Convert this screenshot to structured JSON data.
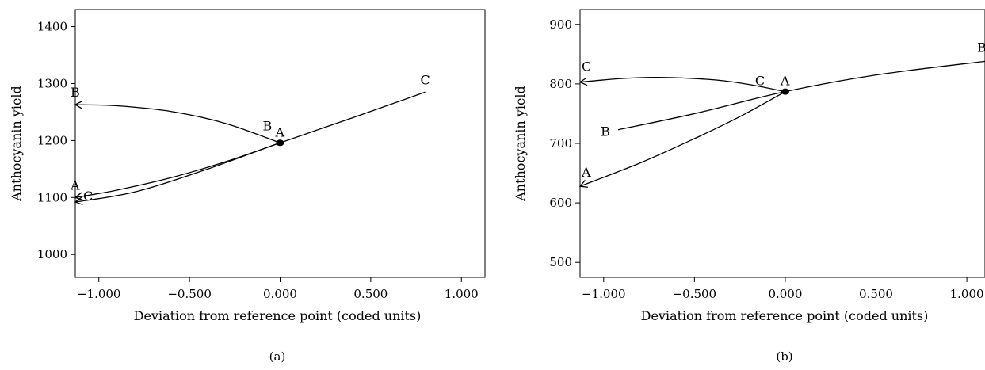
{
  "chart_data": [
    {
      "type": "line",
      "panel_label": "(a)",
      "xlabel": "Deviation from reference point (coded units)",
      "ylabel": "Anthocyanin yield",
      "xlim": [
        -1.13,
        1.13
      ],
      "ylim": [
        960,
        1430
      ],
      "x_ticks": [
        -1.0,
        -0.5,
        0.0,
        0.5,
        1.0
      ],
      "x_tick_labels": [
        "−1.000",
        "−0.500",
        "0.000",
        "0.500",
        "1.000"
      ],
      "y_ticks": [
        1000,
        1100,
        1200,
        1300,
        1400
      ],
      "y_tick_labels": [
        "1000",
        "1100",
        "1200",
        "1300",
        "1400"
      ],
      "reference_point": {
        "label": "A",
        "x": 0.0,
        "y": 1196
      },
      "grid": false,
      "series": [
        {
          "name": "A",
          "x": [
            -1.13,
            -0.9,
            -0.6,
            -0.3,
            0.0
          ],
          "y": [
            1100,
            1113,
            1135,
            1163,
            1196
          ],
          "start_label": "A",
          "end_label": "",
          "arrow_at_start": true
        },
        {
          "name": "B",
          "x": [
            -1.13,
            -0.9,
            -0.6,
            -0.3,
            0.0
          ],
          "y": [
            1263,
            1261,
            1251,
            1230,
            1196
          ],
          "start_label": "B",
          "end_label": "B",
          "arrow_at_start": true
        },
        {
          "name": "C",
          "x": [
            -1.13,
            -0.8,
            -0.4,
            0.0,
            0.4,
            0.8
          ],
          "y": [
            1092,
            1110,
            1150,
            1196,
            1240,
            1285
          ],
          "start_label": "C",
          "end_label": "C",
          "arrow_at_start": true
        }
      ]
    },
    {
      "type": "line",
      "panel_label": "(b)",
      "xlabel": "Deviation from reference point (coded units)",
      "ylabel": "Anthocyanin yield",
      "xlim": [
        -1.13,
        1.1
      ],
      "ylim": [
        475,
        925
      ],
      "x_ticks": [
        -1.0,
        -0.5,
        0.0,
        0.5,
        1.0
      ],
      "x_tick_labels": [
        "−1.000",
        "−0.500",
        "0.000",
        "0.500",
        "1.000"
      ],
      "y_ticks": [
        500,
        600,
        700,
        800,
        900
      ],
      "y_tick_labels": [
        "500",
        "600",
        "700",
        "800",
        "900"
      ],
      "reference_point": {
        "label": "A",
        "x": 0.0,
        "y": 787
      },
      "grid": false,
      "series": [
        {
          "name": "A",
          "x": [
            -1.13,
            -0.8,
            -0.5,
            -0.25,
            0.0
          ],
          "y": [
            628,
            667,
            708,
            745,
            787
          ],
          "start_label": "A",
          "end_label": "",
          "arrow_at_start": true
        },
        {
          "name": "B",
          "x": [
            -0.92,
            -0.5,
            0.0,
            0.5,
            1.1
          ],
          "y": [
            723,
            750,
            787,
            815,
            838
          ],
          "start_label": "B",
          "end_label": "B",
          "arrow_at_start": false
        },
        {
          "name": "C",
          "x": [
            -1.13,
            -0.9,
            -0.7,
            -0.4,
            -0.2,
            0.0
          ],
          "y": [
            803,
            809,
            811,
            807,
            799,
            787
          ],
          "start_label": "C",
          "end_label": "C",
          "arrow_at_start": true
        }
      ]
    }
  ]
}
